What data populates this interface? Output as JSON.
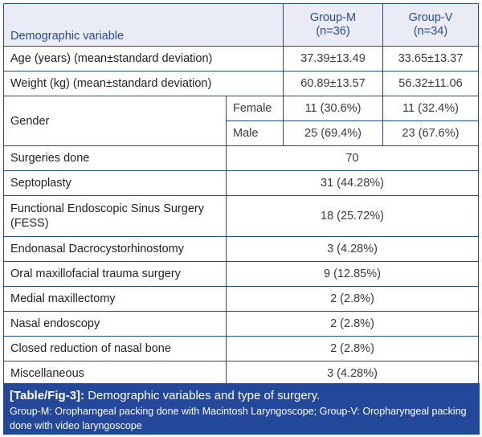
{
  "table": {
    "headers": {
      "variable": "Demographic variable",
      "group_m": "Group-M",
      "group_m_n": "(n=36)",
      "group_v": "Group-V",
      "group_v_n": "(n=34)"
    },
    "age": {
      "label": "Age (years) (mean±standard deviation)",
      "group_m": "37.39±13.49",
      "group_v": "33.65±13.37"
    },
    "weight": {
      "label": "Weight (kg) (mean±standard deviation)",
      "group_m": "60.89±13.57",
      "group_v": "56.32±11.06"
    },
    "gender": {
      "label": "Gender",
      "female": {
        "label": "Female",
        "group_m": "11 (30.6%)",
        "group_v": "11 (32.4%)"
      },
      "male": {
        "label": "Male",
        "group_m": "25 (69.4%)",
        "group_v": "23 (67.6%)"
      }
    },
    "surgeries": [
      {
        "label": "Surgeries done",
        "value": "70"
      },
      {
        "label": "Septoplasty",
        "value": "31 (44.28%)"
      },
      {
        "label": "Functional Endoscopic Sinus Surgery (FESS)",
        "value": "18 (25.72%)"
      },
      {
        "label": "Endonasal Dacrocystorhinostomy",
        "value": "3 (4.28%)"
      },
      {
        "label": "Oral maxillofacial trauma surgery",
        "value": "9 (12.85%)"
      },
      {
        "label": "Medial maxillectomy",
        "value": "2 (2.8%)"
      },
      {
        "label": "Nasal endoscopy",
        "value": "2 (2.8%)"
      },
      {
        "label": "Closed reduction of nasal bone",
        "value": "2 (2.8%)"
      },
      {
        "label": "Miscellaneous",
        "value": "3 (4.28%)"
      }
    ]
  },
  "caption": {
    "tag": "[Table/Fig-3]:",
    "title": " Demographic variables and type of surgery.",
    "note": "Group-M: Oropharngeal packing done with Macintosh Laryngoscope; Group-V: Oropharyngeal packing done with video laryngoscope"
  },
  "colors": {
    "border": "#2a4a7f",
    "header_bg": "#e9ebf5",
    "header_text": "#2a4a8f",
    "caption_bg": "#23489a"
  }
}
